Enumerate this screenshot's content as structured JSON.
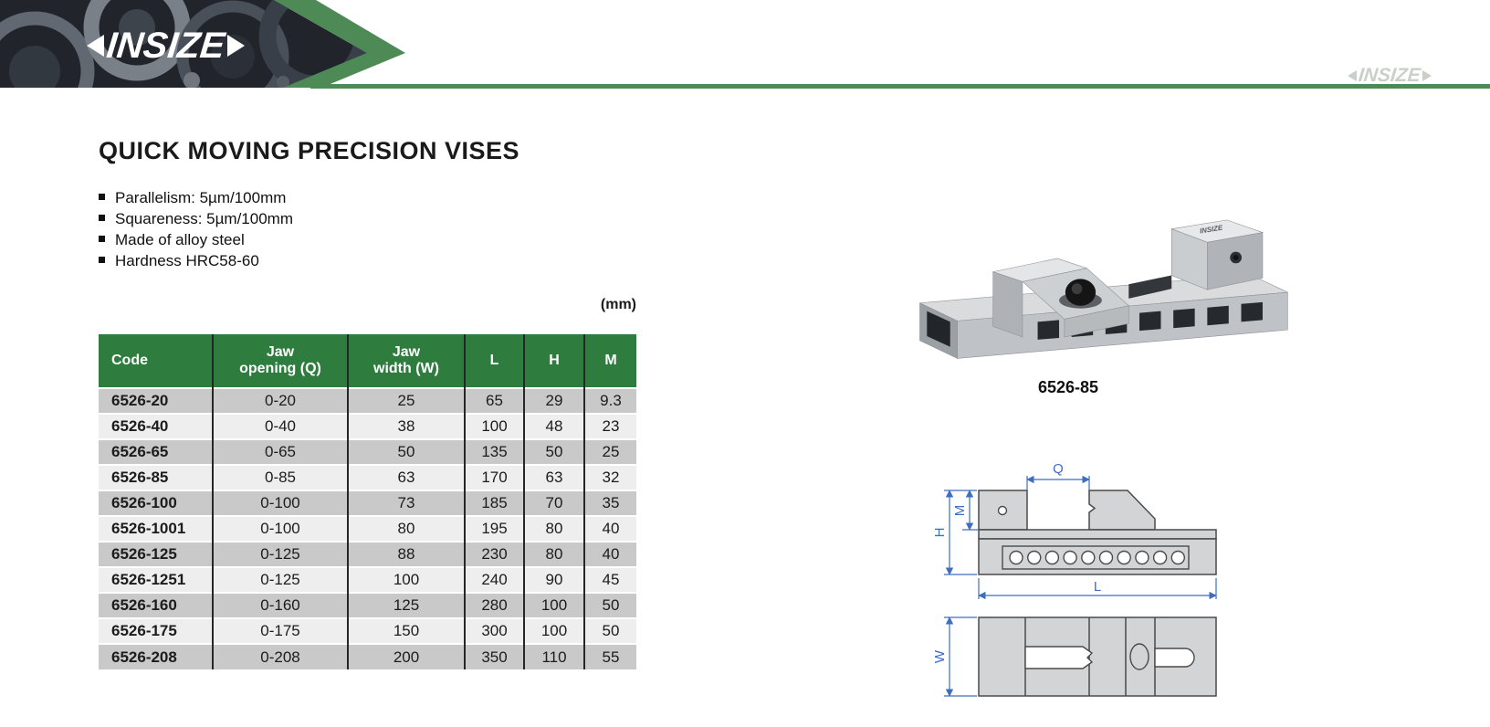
{
  "header": {
    "logo_text": "INSIZE",
    "watermark_text": "INSIZE"
  },
  "colors": {
    "brand_green": "#4e8a55",
    "table_header_green": "#2f7d3e",
    "row_dark": "#c9c9c9",
    "row_light": "#eeeeee",
    "dimension_blue": "#3f6ec0"
  },
  "content": {
    "title": "QUICK MOVING PRECISION VISES",
    "features": [
      "Parallelism: 5µm/100mm",
      "Squareness: 5µm/100mm",
      "Made of alloy steel",
      "Hardness HRC58-60"
    ],
    "units_label": "(mm)"
  },
  "table": {
    "columns": [
      "Code",
      "Jaw\nopening (Q)",
      "Jaw\nwidth (W)",
      "L",
      "H",
      "M"
    ],
    "rows": [
      [
        "6526-20",
        "0-20",
        "25",
        "65",
        "29",
        "9.3"
      ],
      [
        "6526-40",
        "0-40",
        "38",
        "100",
        "48",
        "23"
      ],
      [
        "6526-65",
        "0-65",
        "50",
        "135",
        "50",
        "25"
      ],
      [
        "6526-85",
        "0-85",
        "63",
        "170",
        "63",
        "32"
      ],
      [
        "6526-100",
        "0-100",
        "73",
        "185",
        "70",
        "35"
      ],
      [
        "6526-1001",
        "0-100",
        "80",
        "195",
        "80",
        "40"
      ],
      [
        "6526-125",
        "0-125",
        "88",
        "230",
        "80",
        "40"
      ],
      [
        "6526-1251",
        "0-125",
        "100",
        "240",
        "90",
        "45"
      ],
      [
        "6526-160",
        "0-160",
        "125",
        "280",
        "100",
        "50"
      ],
      [
        "6526-175",
        "0-175",
        "150",
        "300",
        "100",
        "50"
      ],
      [
        "6526-208",
        "0-208",
        "200",
        "350",
        "110",
        "55"
      ]
    ]
  },
  "product": {
    "caption": "6526-85",
    "body_mark": "INSIZE"
  },
  "diagrams": {
    "labels": {
      "q": "Q",
      "m": "M",
      "h": "H",
      "l": "L",
      "w": "W"
    }
  }
}
